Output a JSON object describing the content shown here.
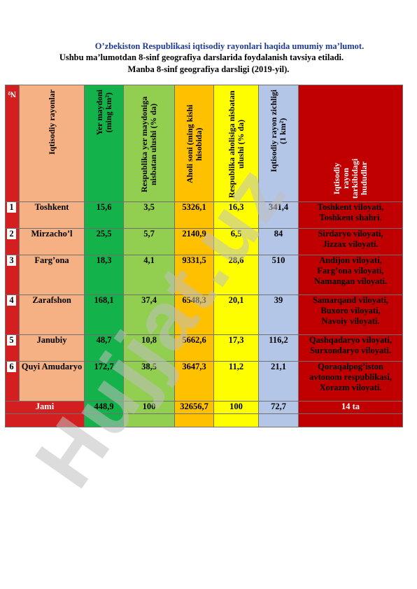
{
  "titles": {
    "line1": "O’zbekiston Respublikasi iqtisodiy rayonlari haqida umumiy ma’lumot.",
    "line2": "Ushbu ma’lumotdan 8-sinf geografiya darslarida foydalanish tavsiya etiladi.",
    "line3": "Manba 8-sinf geografiya darsligi (2019-yil)."
  },
  "headers": {
    "num": "№",
    "region": "Iqtisodiy rayonlar",
    "area_a": "Yer maydoni",
    "area_b": "(ming km²)",
    "area_share": "Respublika yer maydoniga nisbatan ulushi (% da)",
    "population": "Aholi soni (ming kishi hisobida)",
    "pop_share": "Respublika aholisiga nisbatan ulushi (% da)",
    "density_a": "Iqtisodiy rayon zichligi",
    "density_b": "(1 km²)",
    "parts": "Iqtisodiy rayon tarkibidagi hududlar"
  },
  "rows": [
    {
      "n": "1",
      "name": "Toshkent",
      "area": "15,6",
      "share": "3,5",
      "pop": "5326,1",
      "pshare": "16,3",
      "dens": "341,4",
      "parts": [
        "Toshkent viloyati,",
        "Toshkent shahri."
      ]
    },
    {
      "n": "2",
      "name": "Mirzacho’l",
      "area": "25,5",
      "share": "5,7",
      "pop": "2140,9",
      "pshare": "6,5",
      "dens": "84",
      "parts": [
        "Sirdaryo viloyati,",
        "Jizzax viloyati."
      ]
    },
    {
      "n": "3",
      "name": "Farg’ona",
      "area": "18,3",
      "share": "4,1",
      "pop": "9331,5",
      "pshare": "28,6",
      "dens": "510",
      "parts": [
        "Andijon viloyati,",
        "Farg’ona viloyati,",
        "Namangan viloyati."
      ]
    },
    {
      "n": "4",
      "name": "Zarafshon",
      "area": "168,1",
      "share": "37,4",
      "pop": "6548,3",
      "pshare": "20,1",
      "dens": "39",
      "parts": [
        "Samarqand viloyati,",
        "Buxoro viloyati,",
        "Navoiy viloyati."
      ]
    },
    {
      "n": "5",
      "name": "Janubiy",
      "area": "48,7",
      "share": "10,8",
      "pop": "5662,6",
      "pshare": "17,3",
      "dens": "116,2",
      "parts": [
        "Qashqadaryo viloyati,",
        "Surxondaryo viloyati."
      ]
    },
    {
      "n": "6",
      "name": "Quyi Amudaryo",
      "area": "172,7",
      "share": "38,5",
      "pop": "3647,3",
      "pshare": "11,2",
      "dens": "21,1",
      "parts": [
        "Qoraqalpog’iston",
        "avtonom respublikasi,",
        "Xorazm viloyati."
      ]
    }
  ],
  "total": {
    "label": "Jami",
    "area": "448,9",
    "share": "100",
    "pop": "32656,7",
    "pshare": "100",
    "dens": "72,7",
    "parts": "14 ta"
  },
  "watermark": "Hujjat.uz"
}
